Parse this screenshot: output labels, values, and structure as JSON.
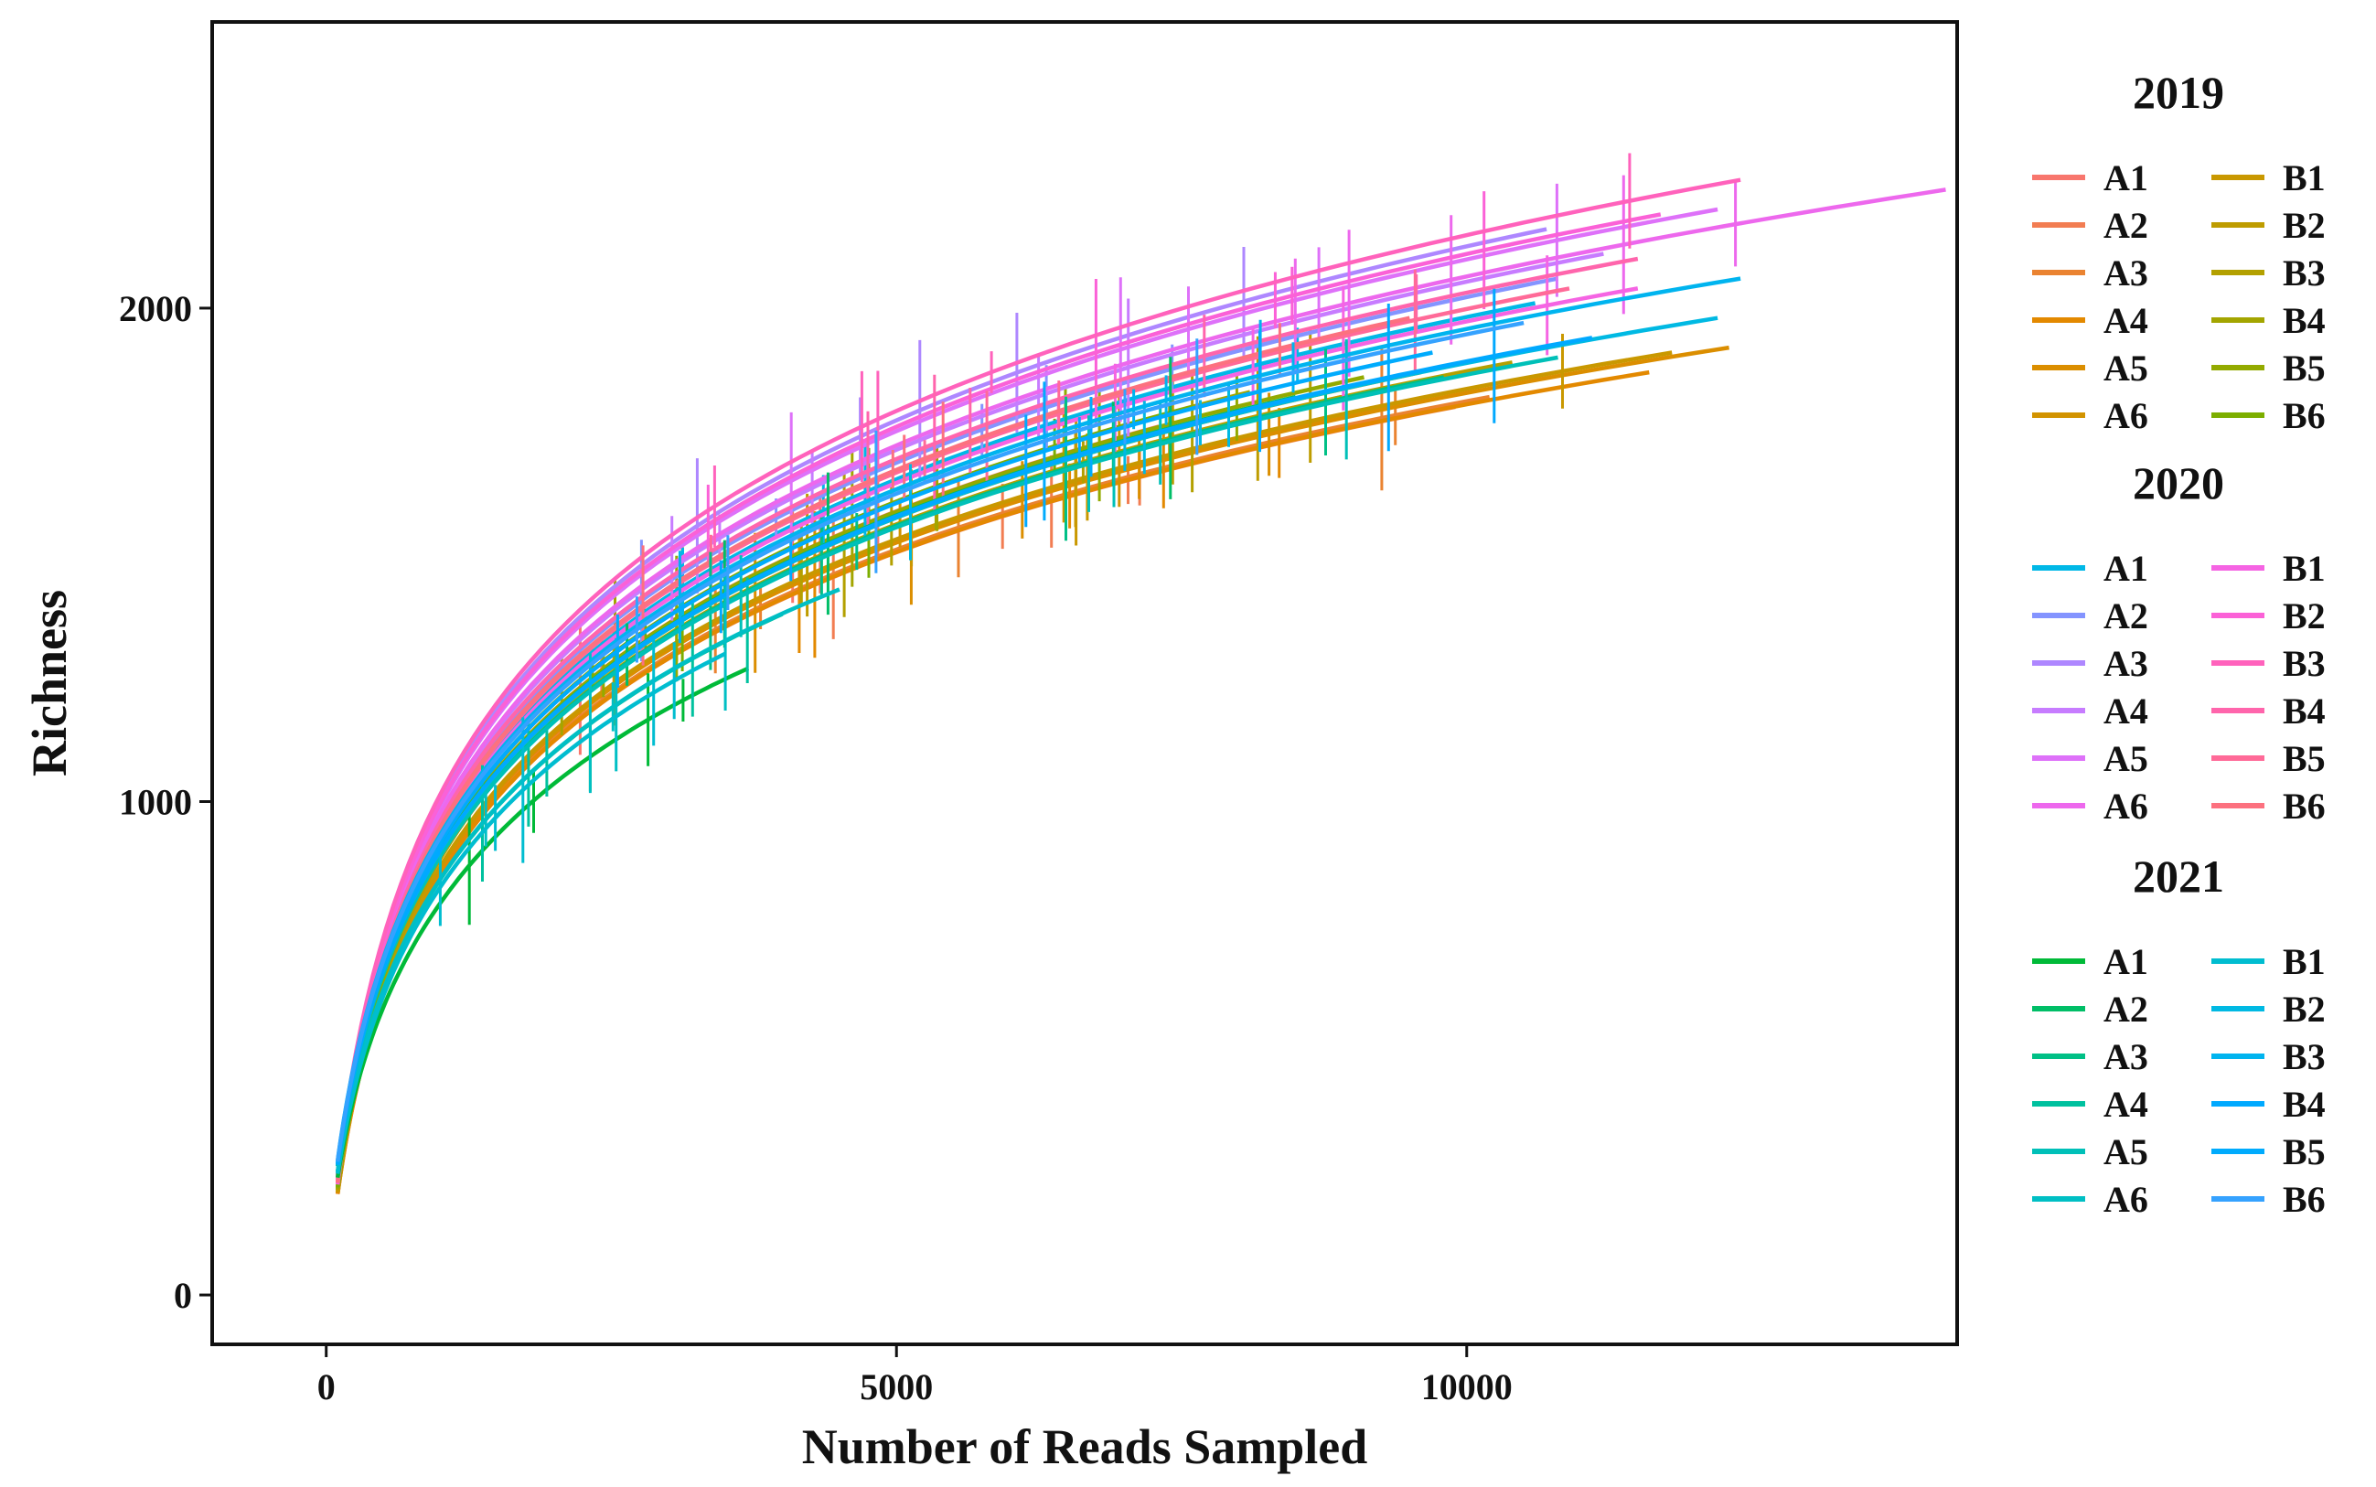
{
  "chart_data": {
    "type": "line",
    "xlabel": "Number of Reads Sampled",
    "ylabel": "Richness",
    "xlim": [
      -1000,
      14300
    ],
    "ylim": [
      -100,
      2580
    ],
    "xticks": [
      0,
      5000,
      10000
    ],
    "yticks": [
      0,
      1000,
      2000
    ],
    "xtick_labels": [
      "0",
      "5000",
      "10000"
    ],
    "ytick_labels": [
      "0",
      "1000",
      "2000"
    ],
    "grid": false,
    "legend_position": "right",
    "legend_groups": [
      {
        "title": "2019",
        "series": [
          {
            "name": "A1",
            "color": "#F8766D",
            "end_reads": 7300,
            "end_richness": 1760
          },
          {
            "name": "A2",
            "color": "#F27D52",
            "end_reads": 9900,
            "end_richness": 1800
          },
          {
            "name": "A3",
            "color": "#EA8331",
            "end_reads": 10200,
            "end_richness": 1820
          },
          {
            "name": "A4",
            "color": "#E38900",
            "end_reads": 11600,
            "end_richness": 1870
          },
          {
            "name": "A5",
            "color": "#DB8E00",
            "end_reads": 12300,
            "end_richness": 1920
          },
          {
            "name": "A6",
            "color": "#D29300",
            "end_reads": 8900,
            "end_richness": 1820
          },
          {
            "name": "B1",
            "color": "#C99800",
            "end_reads": 11800,
            "end_richness": 1910
          },
          {
            "name": "B2",
            "color": "#BE9C00",
            "end_reads": 9600,
            "end_richness": 1870
          },
          {
            "name": "B3",
            "color": "#B3A000",
            "end_reads": 10400,
            "end_richness": 1890
          },
          {
            "name": "B4",
            "color": "#A3A500",
            "end_reads": 8100,
            "end_richness": 1830
          },
          {
            "name": "B5",
            "color": "#93AA00",
            "end_reads": 9100,
            "end_richness": 1860
          },
          {
            "name": "B6",
            "color": "#7CAE00",
            "end_reads": 7600,
            "end_richness": 1800
          }
        ]
      },
      {
        "title": "2020",
        "series": [
          {
            "name": "A1",
            "color": "#00B8E7",
            "end_reads": 10600,
            "end_richness": 2010
          },
          {
            "name": "A2",
            "color": "#8494FF",
            "end_reads": 10800,
            "end_richness": 2060
          },
          {
            "name": "A3",
            "color": "#AE87FF",
            "end_reads": 10700,
            "end_richness": 2160
          },
          {
            "name": "A4",
            "color": "#C77CFF",
            "end_reads": 11200,
            "end_richness": 2110
          },
          {
            "name": "A5",
            "color": "#DE71F9",
            "end_reads": 12200,
            "end_richness": 2200
          },
          {
            "name": "A6",
            "color": "#ED68ED",
            "end_reads": 14200,
            "end_richness": 2240
          },
          {
            "name": "B1",
            "color": "#F564E3",
            "end_reads": 11500,
            "end_richness": 2040
          },
          {
            "name": "B2",
            "color": "#FB61D7",
            "end_reads": 11700,
            "end_richness": 2190
          },
          {
            "name": "B3",
            "color": "#FF62BC",
            "end_reads": 12400,
            "end_richness": 2260
          },
          {
            "name": "B4",
            "color": "#FF65AC",
            "end_reads": 11500,
            "end_richness": 2100
          },
          {
            "name": "B5",
            "color": "#FF6A98",
            "end_reads": 10900,
            "end_richness": 2040
          },
          {
            "name": "B6",
            "color": "#FC717F",
            "end_reads": 9500,
            "end_richness": 1980
          }
        ]
      },
      {
        "title": "2021",
        "series": [
          {
            "name": "A1",
            "color": "#00BA38",
            "end_reads": 3700,
            "end_richness": 1270
          },
          {
            "name": "A2",
            "color": "#00BE67",
            "end_reads": 8500,
            "end_richness": 1820
          },
          {
            "name": "A3",
            "color": "#00C086",
            "end_reads": 9800,
            "end_richness": 1860
          },
          {
            "name": "A4",
            "color": "#00C19F",
            "end_reads": 4000,
            "end_richness": 1380
          },
          {
            "name": "A5",
            "color": "#00C0B8",
            "end_reads": 10800,
            "end_richness": 1900
          },
          {
            "name": "A6",
            "color": "#00BFC4",
            "end_reads": 4500,
            "end_richness": 1430
          },
          {
            "name": "B1",
            "color": "#00BDD0",
            "end_reads": 3500,
            "end_richness": 1300
          },
          {
            "name": "B2",
            "color": "#00B9E3",
            "end_reads": 12200,
            "end_richness": 1980
          },
          {
            "name": "B3",
            "color": "#00B4EF",
            "end_reads": 12400,
            "end_richness": 2060
          },
          {
            "name": "B4",
            "color": "#00A9FF",
            "end_reads": 11100,
            "end_richness": 1940
          },
          {
            "name": "B5",
            "color": "#00ABFD",
            "end_reads": 9700,
            "end_richness": 1910
          },
          {
            "name": "B6",
            "color": "#35A2FF",
            "end_reads": 10500,
            "end_richness": 1970
          }
        ]
      }
    ]
  }
}
